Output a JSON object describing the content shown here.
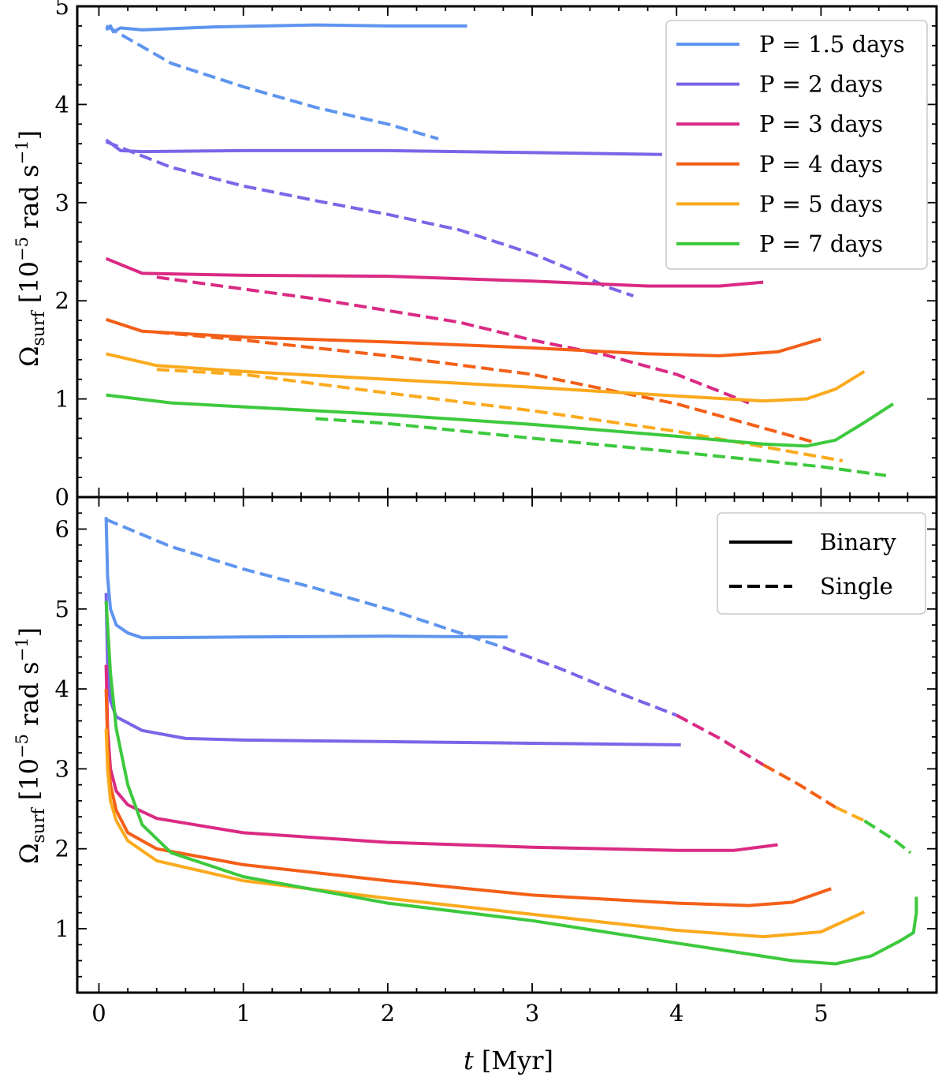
{
  "figure": {
    "xlabel": "t [Myr]",
    "xlabel_var": "t",
    "xlabel_unit": "[Myr]",
    "x_ticks": [
      "0",
      "1",
      "2",
      "3",
      "4",
      "5"
    ]
  },
  "colors": {
    "P1.5": "#5f95ef",
    "P2": "#7966e8",
    "P3": "#da2a84",
    "P4": "#f45f18",
    "P5": "#fbaa1e",
    "P7": "#3dc93d"
  },
  "chart_data": [
    {
      "type": "line",
      "panel": "top",
      "ylabel": "Ω_surf [10^-5 rad s^-1]",
      "xlim": [
        -0.15,
        5.8
      ],
      "ylim": [
        0,
        5
      ],
      "y_ticks": [
        "0",
        "1",
        "2",
        "3",
        "4",
        "5"
      ],
      "grid": false,
      "legend": {
        "placement": "top-right",
        "entries": [
          {
            "label": "P = 1.5 days",
            "color_key": "P1.5"
          },
          {
            "label": "P = 2 days",
            "color_key": "P2"
          },
          {
            "label": "P = 3 days",
            "color_key": "P3"
          },
          {
            "label": "P = 4 days",
            "color_key": "P4"
          },
          {
            "label": "P = 5 days",
            "color_key": "P5"
          },
          {
            "label": "P = 7 days",
            "color_key": "P7"
          }
        ]
      },
      "series": [
        {
          "name": "P = 1.5 days",
          "kind": "binary",
          "color_key": "P1.5",
          "x": [
            0.05,
            0.08,
            0.1,
            0.15,
            0.3,
            0.8,
            1.5,
            2.0,
            2.55
          ],
          "y": [
            4.76,
            4.8,
            4.74,
            4.78,
            4.76,
            4.79,
            4.81,
            4.8,
            4.8
          ]
        },
        {
          "name": "P = 1.5 days",
          "kind": "single",
          "color_key": "P1.5",
          "x": [
            0.05,
            0.5,
            1.0,
            1.5,
            2.0,
            2.35
          ],
          "y": [
            4.8,
            4.42,
            4.18,
            3.97,
            3.8,
            3.65
          ]
        },
        {
          "name": "P = 2 days",
          "kind": "binary",
          "color_key": "P2",
          "x": [
            0.05,
            0.15,
            0.3,
            1.0,
            2.0,
            3.0,
            3.9
          ],
          "y": [
            3.64,
            3.53,
            3.52,
            3.53,
            3.53,
            3.51,
            3.49
          ]
        },
        {
          "name": "P = 2 days",
          "kind": "single",
          "color_key": "P2",
          "x": [
            0.05,
            0.5,
            1.0,
            1.5,
            2.0,
            2.5,
            3.0,
            3.3,
            3.5,
            3.7
          ],
          "y": [
            3.62,
            3.36,
            3.17,
            3.02,
            2.88,
            2.72,
            2.48,
            2.3,
            2.15,
            2.05
          ]
        },
        {
          "name": "P = 3 days",
          "kind": "binary",
          "color_key": "P3",
          "x": [
            0.05,
            0.3,
            1.0,
            2.0,
            3.0,
            3.8,
            4.3,
            4.6
          ],
          "y": [
            2.43,
            2.28,
            2.26,
            2.25,
            2.2,
            2.15,
            2.15,
            2.19
          ]
        },
        {
          "name": "P = 3 days",
          "kind": "single",
          "color_key": "P3",
          "x": [
            0.4,
            1.0,
            1.5,
            2.0,
            2.5,
            3.0,
            3.5,
            4.0,
            4.5
          ],
          "y": [
            2.24,
            2.12,
            2.02,
            1.9,
            1.78,
            1.6,
            1.45,
            1.25,
            0.96
          ]
        },
        {
          "name": "P = 4 days",
          "kind": "binary",
          "color_key": "P4",
          "x": [
            0.05,
            0.3,
            1.0,
            2.0,
            3.0,
            3.8,
            4.3,
            4.7,
            5.0
          ],
          "y": [
            1.81,
            1.69,
            1.63,
            1.58,
            1.52,
            1.46,
            1.44,
            1.48,
            1.61
          ]
        },
        {
          "name": "P = 4 days",
          "kind": "single",
          "color_key": "P4",
          "x": [
            0.4,
            1.0,
            2.0,
            3.0,
            4.0,
            4.95
          ],
          "y": [
            1.68,
            1.6,
            1.44,
            1.25,
            0.95,
            0.56
          ]
        },
        {
          "name": "P = 5 days",
          "kind": "binary",
          "color_key": "P5",
          "x": [
            0.05,
            0.4,
            1.0,
            2.0,
            3.0,
            4.0,
            4.6,
            4.9,
            5.1,
            5.3
          ],
          "y": [
            1.46,
            1.34,
            1.28,
            1.2,
            1.12,
            1.03,
            0.98,
            1.0,
            1.1,
            1.28
          ]
        },
        {
          "name": "P = 5 days",
          "kind": "single",
          "color_key": "P5",
          "x": [
            0.4,
            1.0,
            2.0,
            3.0,
            4.0,
            5.15
          ],
          "y": [
            1.3,
            1.25,
            1.06,
            0.88,
            0.67,
            0.37
          ]
        },
        {
          "name": "P = 7 days",
          "kind": "binary",
          "color_key": "P7",
          "x": [
            0.05,
            0.5,
            1.0,
            2.0,
            3.0,
            4.0,
            4.6,
            4.9,
            5.1,
            5.3,
            5.5
          ],
          "y": [
            1.04,
            0.96,
            0.92,
            0.84,
            0.74,
            0.62,
            0.54,
            0.52,
            0.58,
            0.76,
            0.95
          ]
        },
        {
          "name": "P = 7 days",
          "kind": "single",
          "color_key": "P7",
          "x": [
            1.5,
            2.0,
            3.0,
            4.0,
            5.0,
            5.45
          ],
          "y": [
            0.8,
            0.75,
            0.6,
            0.46,
            0.31,
            0.22
          ]
        }
      ]
    },
    {
      "type": "line",
      "panel": "bottom",
      "ylabel": "Ω_surf [10^-5 rad s^-1]",
      "xlim": [
        -0.15,
        5.8
      ],
      "ylim": [
        0.2,
        6.4
      ],
      "y_ticks": [
        "1",
        "2",
        "3",
        "4",
        "5",
        "6"
      ],
      "grid": false,
      "legend": {
        "placement": "top-right",
        "entries": [
          {
            "label": "Binary",
            "style": "solid"
          },
          {
            "label": "Single",
            "style": "dashed"
          }
        ]
      },
      "series": [
        {
          "name": "P = 1.5 days",
          "kind": "binary",
          "color_key": "P1.5",
          "x": [
            0.05,
            0.06,
            0.08,
            0.12,
            0.2,
            0.3,
            1.0,
            2.0,
            2.83
          ],
          "y": [
            6.15,
            5.4,
            5.0,
            4.8,
            4.7,
            4.64,
            4.65,
            4.66,
            4.65
          ]
        },
        {
          "name": "P = 2 days",
          "kind": "binary",
          "color_key": "P2",
          "x": [
            0.05,
            0.06,
            0.08,
            0.12,
            0.3,
            0.6,
            1.0,
            2.0,
            3.0,
            4.03
          ],
          "y": [
            5.2,
            4.3,
            3.85,
            3.65,
            3.48,
            3.38,
            3.36,
            3.34,
            3.32,
            3.3
          ]
        },
        {
          "name": "P = 3 days",
          "kind": "binary",
          "color_key": "P3",
          "x": [
            0.05,
            0.06,
            0.08,
            0.12,
            0.2,
            0.4,
            1.0,
            2.0,
            3.0,
            4.0,
            4.4,
            4.7
          ],
          "y": [
            4.3,
            3.5,
            3.0,
            2.72,
            2.55,
            2.38,
            2.2,
            2.08,
            2.02,
            1.98,
            1.98,
            2.05
          ]
        },
        {
          "name": "P = 4 days",
          "kind": "binary",
          "color_key": "P4",
          "x": [
            0.05,
            0.06,
            0.08,
            0.12,
            0.2,
            0.4,
            1.0,
            2.0,
            3.0,
            4.0,
            4.5,
            4.8,
            5.07
          ],
          "y": [
            4.0,
            3.3,
            2.8,
            2.48,
            2.2,
            2.0,
            1.8,
            1.6,
            1.42,
            1.32,
            1.29,
            1.33,
            1.5
          ]
        },
        {
          "name": "P = 5 days",
          "kind": "binary",
          "color_key": "P5",
          "x": [
            0.05,
            0.06,
            0.08,
            0.12,
            0.2,
            0.4,
            1.0,
            2.0,
            3.0,
            4.0,
            4.6,
            5.0,
            5.3
          ],
          "y": [
            3.5,
            3.0,
            2.6,
            2.35,
            2.1,
            1.85,
            1.6,
            1.38,
            1.18,
            0.98,
            0.9,
            0.96,
            1.21
          ]
        },
        {
          "name": "P = 7 days",
          "kind": "binary",
          "color_key": "P7",
          "x": [
            0.05,
            0.08,
            0.12,
            0.2,
            0.3,
            0.5,
            1.0,
            2.0,
            3.0,
            4.0,
            4.8,
            5.1,
            5.35,
            5.55,
            5.64,
            5.66,
            5.66
          ],
          "y": [
            5.1,
            4.2,
            3.5,
            2.8,
            2.3,
            1.95,
            1.65,
            1.32,
            1.1,
            0.82,
            0.6,
            0.56,
            0.66,
            0.85,
            0.95,
            1.2,
            1.4
          ]
        },
        {
          "name": "Single",
          "kind": "single",
          "color_key": "P1.5",
          "x": [
            0.05,
            0.5,
            1.0,
            1.5,
            2.0,
            2.5,
            2.8
          ],
          "y": [
            6.12,
            5.78,
            5.5,
            5.26,
            5.0,
            4.7,
            4.52
          ]
        },
        {
          "name": "Single",
          "kind": "single",
          "color_key": "P2",
          "x": [
            2.8,
            3.2,
            3.6,
            4.0
          ],
          "y": [
            4.52,
            4.25,
            3.95,
            3.67
          ]
        },
        {
          "name": "Single",
          "kind": "single",
          "color_key": "P3",
          "x": [
            4.0,
            4.3,
            4.6
          ],
          "y": [
            3.67,
            3.38,
            3.05
          ]
        },
        {
          "name": "Single",
          "kind": "single",
          "color_key": "P4",
          "x": [
            4.6,
            4.85,
            5.1
          ],
          "y": [
            3.05,
            2.8,
            2.52
          ]
        },
        {
          "name": "Single",
          "kind": "single",
          "color_key": "P5",
          "x": [
            5.1,
            5.3
          ],
          "y": [
            2.52,
            2.35
          ]
        },
        {
          "name": "Single",
          "kind": "single",
          "color_key": "P7",
          "x": [
            5.3,
            5.5,
            5.62
          ],
          "y": [
            2.35,
            2.12,
            1.95
          ]
        }
      ]
    }
  ]
}
